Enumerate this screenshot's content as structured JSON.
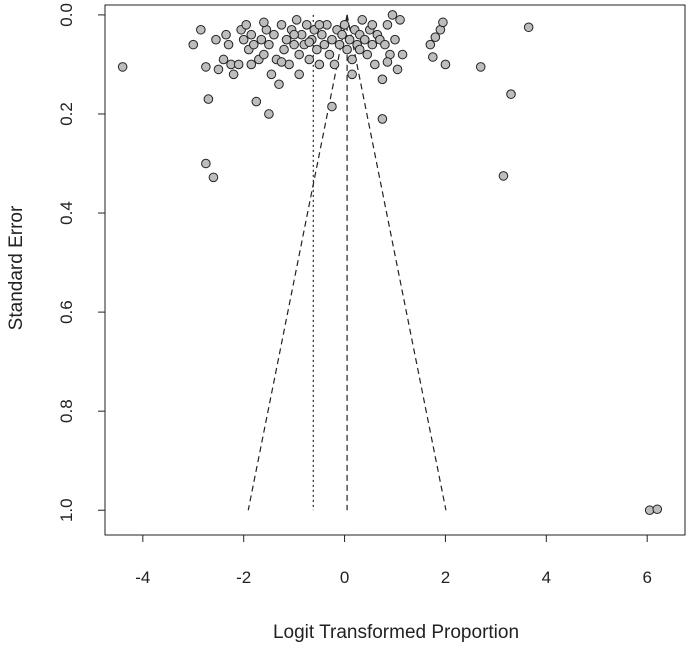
{
  "chart_data": {
    "type": "scatter",
    "plot_kind": "funnel",
    "title": "",
    "xlabel": "Logit Transformed Proportion",
    "ylabel": "Standard Error",
    "xlim": [
      -4.75,
      6.75
    ],
    "ylim": [
      1.05,
      -0.02
    ],
    "y_reversed": true,
    "x_ticks": [
      -4,
      -2,
      0,
      2,
      4,
      6
    ],
    "y_ticks": [
      0.0,
      0.2,
      0.4,
      0.6,
      0.8,
      1.0
    ],
    "x_tick_labels": [
      "-4",
      "-2",
      "0",
      "2",
      "4",
      "6"
    ],
    "y_tick_labels": [
      "0.0",
      "0.2",
      "0.4",
      "0.6",
      "0.8",
      "1.0"
    ],
    "grid": false,
    "reference_lines": [
      {
        "style": "dotted",
        "x": -0.62,
        "y_range": [
          0.0,
          1.0
        ]
      },
      {
        "style": "dashed",
        "x": 0.05,
        "y_range": [
          0.0,
          1.0
        ]
      }
    ],
    "funnel": {
      "center": 0.05,
      "se_max": 1.0,
      "z": 1.96,
      "style": "dashed"
    },
    "point_fill": "#bdbdbd",
    "point_stroke": "#222222",
    "points": [
      {
        "x": -4.4,
        "y": 0.105
      },
      {
        "x": -3.0,
        "y": 0.06
      },
      {
        "x": -2.85,
        "y": 0.03
      },
      {
        "x": -2.75,
        "y": 0.105
      },
      {
        "x": -2.7,
        "y": 0.17
      },
      {
        "x": -2.75,
        "y": 0.3
      },
      {
        "x": -2.6,
        "y": 0.328
      },
      {
        "x": -2.55,
        "y": 0.05
      },
      {
        "x": -2.5,
        "y": 0.11
      },
      {
        "x": -2.4,
        "y": 0.09
      },
      {
        "x": -2.35,
        "y": 0.04
      },
      {
        "x": -2.3,
        "y": 0.06
      },
      {
        "x": -2.25,
        "y": 0.1
      },
      {
        "x": -2.2,
        "y": 0.12
      },
      {
        "x": -2.1,
        "y": 0.1
      },
      {
        "x": -2.05,
        "y": 0.03
      },
      {
        "x": -2.0,
        "y": 0.05
      },
      {
        "x": -1.95,
        "y": 0.02
      },
      {
        "x": -1.9,
        "y": 0.07
      },
      {
        "x": -1.85,
        "y": 0.04
      },
      {
        "x": -1.8,
        "y": 0.06
      },
      {
        "x": -1.75,
        "y": 0.175
      },
      {
        "x": -1.7,
        "y": 0.09
      },
      {
        "x": -1.65,
        "y": 0.05
      },
      {
        "x": -1.6,
        "y": 0.08
      },
      {
        "x": -1.55,
        "y": 0.03
      },
      {
        "x": -1.5,
        "y": 0.06
      },
      {
        "x": -1.5,
        "y": 0.2
      },
      {
        "x": -1.45,
        "y": 0.12
      },
      {
        "x": -1.4,
        "y": 0.04
      },
      {
        "x": -1.35,
        "y": 0.09
      },
      {
        "x": -1.3,
        "y": 0.14
      },
      {
        "x": -1.25,
        "y": 0.02
      },
      {
        "x": -1.2,
        "y": 0.07
      },
      {
        "x": -1.15,
        "y": 0.05
      },
      {
        "x": -1.1,
        "y": 0.1
      },
      {
        "x": -1.05,
        "y": 0.03
      },
      {
        "x": -1.0,
        "y": 0.06
      },
      {
        "x": -0.95,
        "y": 0.01
      },
      {
        "x": -0.9,
        "y": 0.08
      },
      {
        "x": -0.9,
        "y": 0.12
      },
      {
        "x": -0.85,
        "y": 0.04
      },
      {
        "x": -0.8,
        "y": 0.06
      },
      {
        "x": -0.75,
        "y": 0.02
      },
      {
        "x": -0.7,
        "y": 0.09
      },
      {
        "x": -0.65,
        "y": 0.05
      },
      {
        "x": -0.6,
        "y": 0.03
      },
      {
        "x": -0.55,
        "y": 0.07
      },
      {
        "x": -0.5,
        "y": 0.1
      },
      {
        "x": -0.45,
        "y": 0.04
      },
      {
        "x": -0.4,
        "y": 0.06
      },
      {
        "x": -0.35,
        "y": 0.02
      },
      {
        "x": -0.3,
        "y": 0.08
      },
      {
        "x": -0.25,
        "y": 0.05
      },
      {
        "x": -0.25,
        "y": 0.185
      },
      {
        "x": -0.2,
        "y": 0.1
      },
      {
        "x": -0.15,
        "y": 0.03
      },
      {
        "x": -0.1,
        "y": 0.06
      },
      {
        "x": -0.05,
        "y": 0.04
      },
      {
        "x": 0.0,
        "y": 0.02
      },
      {
        "x": 0.05,
        "y": 0.07
      },
      {
        "x": 0.1,
        "y": 0.05
      },
      {
        "x": 0.15,
        "y": 0.09
      },
      {
        "x": 0.2,
        "y": 0.03
      },
      {
        "x": 0.25,
        "y": 0.06
      },
      {
        "x": 0.3,
        "y": 0.04
      },
      {
        "x": 0.35,
        "y": 0.01
      },
      {
        "x": 0.4,
        "y": 0.05
      },
      {
        "x": 0.45,
        "y": 0.08
      },
      {
        "x": 0.5,
        "y": 0.03
      },
      {
        "x": 0.55,
        "y": 0.06
      },
      {
        "x": 0.6,
        "y": 0.1
      },
      {
        "x": 0.65,
        "y": 0.04
      },
      {
        "x": 0.7,
        "y": 0.05
      },
      {
        "x": 0.75,
        "y": 0.13
      },
      {
        "x": 0.75,
        "y": 0.21
      },
      {
        "x": 0.8,
        "y": 0.06
      },
      {
        "x": 0.85,
        "y": 0.02
      },
      {
        "x": 0.9,
        "y": 0.08
      },
      {
        "x": 0.95,
        "y": 0.0
      },
      {
        "x": 1.0,
        "y": 0.05
      },
      {
        "x": 1.05,
        "y": 0.11
      },
      {
        "x": 1.1,
        "y": 0.01
      },
      {
        "x": 1.15,
        "y": 0.08
      },
      {
        "x": 1.7,
        "y": 0.06
      },
      {
        "x": 1.75,
        "y": 0.085
      },
      {
        "x": 1.8,
        "y": 0.045
      },
      {
        "x": 1.9,
        "y": 0.03
      },
      {
        "x": 1.95,
        "y": 0.015
      },
      {
        "x": 2.0,
        "y": 0.1
      },
      {
        "x": 2.7,
        "y": 0.105
      },
      {
        "x": 3.15,
        "y": 0.325
      },
      {
        "x": 3.3,
        "y": 0.16
      },
      {
        "x": 3.65,
        "y": 0.025
      },
      {
        "x": -0.5,
        "y": 0.02
      },
      {
        "x": -1.0,
        "y": 0.04
      },
      {
        "x": 0.3,
        "y": 0.07
      },
      {
        "x": -0.7,
        "y": 0.055
      },
      {
        "x": 0.55,
        "y": 0.02
      },
      {
        "x": -1.6,
        "y": 0.015
      },
      {
        "x": 0.15,
        "y": 0.12
      },
      {
        "x": -1.25,
        "y": 0.095
      },
      {
        "x": -1.85,
        "y": 0.1
      },
      {
        "x": 0.85,
        "y": 0.095
      },
      {
        "x": 6.05,
        "y": 1.0
      },
      {
        "x": 6.2,
        "y": 0.998
      }
    ]
  }
}
